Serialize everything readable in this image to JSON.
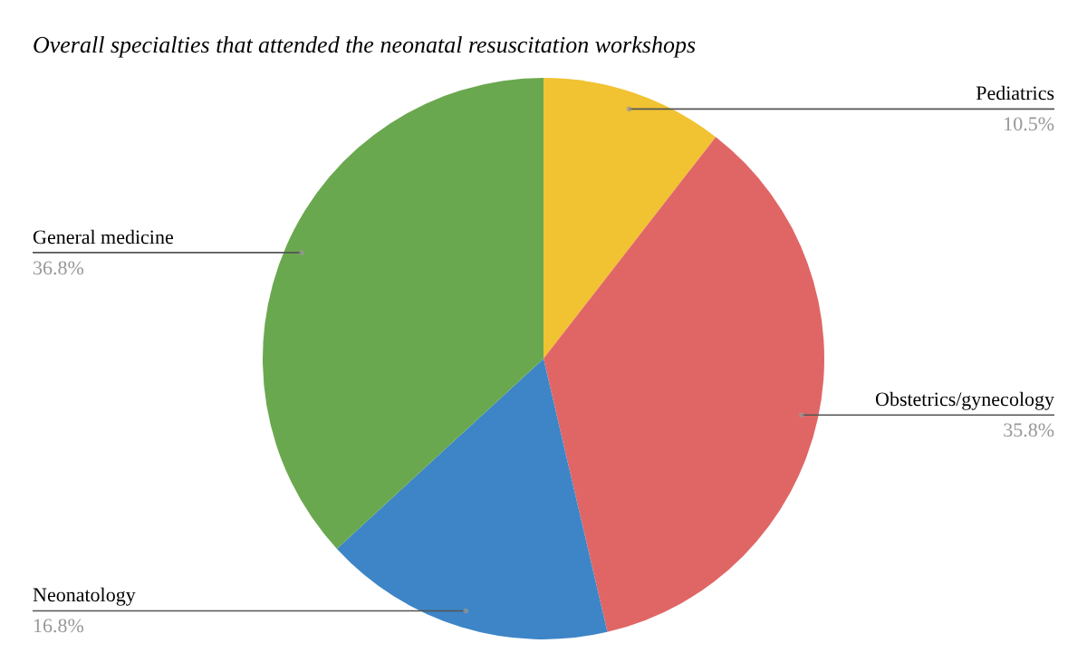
{
  "chart_data": {
    "type": "pie",
    "title": "Overall specialties that attended the neonatal resuscitation workshops",
    "categories": [
      "Pediatrics",
      "Obstetrics/gynecology",
      "Neonatology",
      "General medicine"
    ],
    "values": [
      10.5,
      35.8,
      16.8,
      36.8
    ],
    "value_labels": [
      "10.5%",
      "35.8%",
      "16.8%",
      "36.8%"
    ],
    "colors": [
      "#f1c232",
      "#e06666",
      "#3d85c6",
      "#6aa84f"
    ]
  }
}
